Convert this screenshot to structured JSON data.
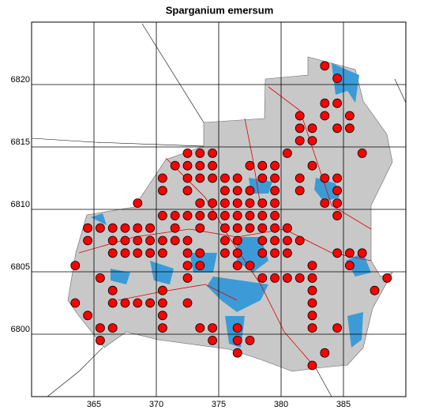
{
  "chart_data": {
    "type": "scatter",
    "title": "Sparganium emersum",
    "x": [
      383.5,
      384.5,
      383.5,
      384.5,
      381.5,
      383.5,
      385.5,
      381.5,
      382.5,
      384.5,
      385.5,
      381.5,
      382.5,
      372.5,
      373.5,
      374.5,
      380.5,
      386.5,
      371.5,
      372.5,
      373.5,
      374.5,
      377.5,
      378.5,
      379.5,
      382.5,
      370.5,
      372.5,
      373.5,
      374.5,
      375.5,
      376.5,
      378.5,
      379.5,
      381.5,
      383.5,
      384.5,
      370.5,
      372.5,
      375.5,
      376.5,
      377.5,
      379.5,
      381.5,
      384.5,
      368.5,
      373.5,
      374.5,
      375.5,
      376.5,
      377.5,
      378.5,
      379.5,
      383.5,
      384.5,
      370.5,
      371.5,
      372.5,
      373.5,
      374.5,
      375.5,
      376.5,
      377.5,
      378.5,
      379.5,
      384.5,
      364.5,
      365.5,
      366.5,
      367.5,
      368.5,
      369.5,
      371.5,
      373.5,
      375.5,
      376.5,
      377.5,
      378.5,
      379.5,
      380.5,
      364.5,
      366.5,
      367.5,
      368.5,
      369.5,
      370.5,
      371.5,
      372.5,
      375.5,
      376.5,
      378.5,
      379.5,
      380.5,
      381.5,
      366.5,
      367.5,
      368.5,
      369.5,
      370.5,
      372.5,
      373.5,
      375.5,
      376.5,
      378.5,
      379.5,
      380.5,
      384.5,
      385.5,
      386.5,
      363.5,
      372.5,
      373.5,
      376.5,
      377.5,
      382.5,
      385.5,
      365.5,
      372.5,
      378.5,
      379.5,
      380.5,
      381.5,
      382.5,
      388.5,
      366.5,
      370.5,
      382.5,
      387.5,
      363.5,
      366.5,
      367.5,
      368.5,
      369.5,
      370.5,
      372.5,
      382.5,
      364.5,
      370.5,
      382.5,
      365.5,
      366.5,
      370.5,
      373.5,
      374.5,
      376.5,
      382.5,
      384.5,
      365.5,
      374.5,
      376.5,
      377.5,
      376.5,
      383.5,
      382.5
    ],
    "y": [
      6821.5,
      6820.5,
      6818.5,
      6818.5,
      6817.5,
      6817.5,
      6817.5,
      6816.5,
      6816.5,
      6816.5,
      6816.5,
      6815.5,
      6815.5,
      6814.5,
      6814.5,
      6814.5,
      6814.5,
      6814.5,
      6813.5,
      6813.5,
      6813.5,
      6813.5,
      6813.5,
      6813.5,
      6813.5,
      6813.5,
      6812.5,
      6812.5,
      6812.5,
      6812.5,
      6812.5,
      6812.5,
      6812.5,
      6812.5,
      6812.5,
      6812.5,
      6812.5,
      6811.5,
      6811.5,
      6811.5,
      6811.5,
      6811.5,
      6811.5,
      6811.5,
      6811.5,
      6810.5,
      6810.5,
      6810.5,
      6810.5,
      6810.5,
      6810.5,
      6810.5,
      6810.5,
      6810.5,
      6810.5,
      6809.5,
      6809.5,
      6809.5,
      6809.5,
      6809.5,
      6809.5,
      6809.5,
      6809.5,
      6809.5,
      6809.5,
      6809.5,
      6808.5,
      6808.5,
      6808.5,
      6808.5,
      6808.5,
      6808.5,
      6808.5,
      6808.5,
      6808.5,
      6808.5,
      6808.5,
      6808.5,
      6808.5,
      6808.5,
      6807.5,
      6807.5,
      6807.5,
      6807.5,
      6807.5,
      6807.5,
      6807.5,
      6807.5,
      6807.5,
      6807.5,
      6807.5,
      6807.5,
      6807.5,
      6807.5,
      6806.5,
      6806.5,
      6806.5,
      6806.5,
      6806.5,
      6806.5,
      6806.5,
      6806.5,
      6806.5,
      6806.5,
      6806.5,
      6806.5,
      6806.5,
      6806.5,
      6806.5,
      6805.5,
      6805.5,
      6805.5,
      6805.5,
      6805.5,
      6805.5,
      6805.5,
      6804.5,
      6804.5,
      6804.5,
      6804.5,
      6804.5,
      6804.5,
      6804.5,
      6804.5,
      6803.5,
      6803.5,
      6803.5,
      6803.5,
      6802.5,
      6802.5,
      6802.5,
      6802.5,
      6802.5,
      6802.5,
      6802.5,
      6802.5,
      6801.5,
      6801.5,
      6801.5,
      6800.5,
      6800.5,
      6800.5,
      6800.5,
      6800.5,
      6800.5,
      6800.5,
      6800.5,
      6799.5,
      6799.5,
      6799.5,
      6799.5,
      6798.5,
      6798.5,
      6797.5
    ],
    "color": "#ff0000",
    "xlim": [
      360,
      390
    ],
    "ylim": [
      6795,
      6825
    ],
    "xticks": [
      365,
      370,
      375,
      380,
      385
    ],
    "yticks": [
      6800,
      6805,
      6810,
      6815,
      6820
    ],
    "grid": true
  }
}
